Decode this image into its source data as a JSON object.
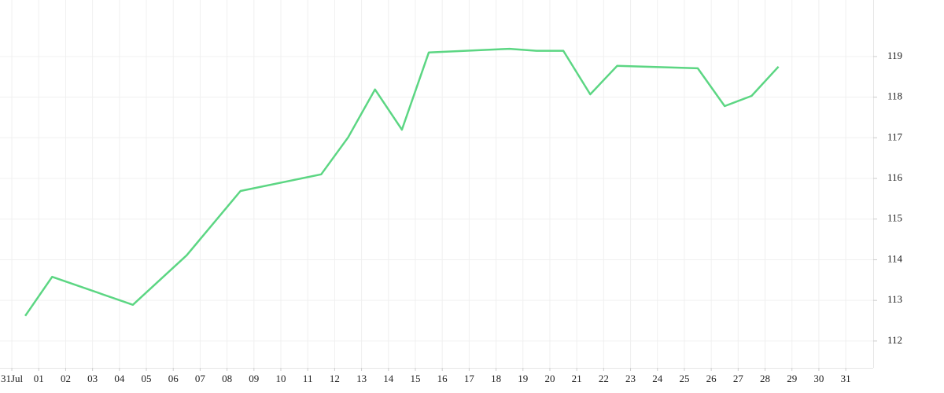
{
  "chart_data": {
    "type": "line",
    "x": [
      0.5,
      1.5,
      4.5,
      6.5,
      8.5,
      11.5,
      12.5,
      13.5,
      14.5,
      15.5,
      18.5,
      19.5,
      20.5,
      21.5,
      22.5,
      25.5,
      26.5,
      27.5,
      28.5
    ],
    "values": [
      112.62,
      113.58,
      112.89,
      114.11,
      115.69,
      116.1,
      117.01,
      118.19,
      117.2,
      119.1,
      119.19,
      119.14,
      119.14,
      118.07,
      118.77,
      118.71,
      117.78,
      118.03,
      118.75
    ],
    "color": "#5cd683",
    "xlim": [
      -0.44,
      32.02
    ],
    "xticks": [
      {
        "value": 0,
        "label": "31Jul"
      },
      {
        "value": 1,
        "label": "01"
      },
      {
        "value": 2,
        "label": "02"
      },
      {
        "value": 3,
        "label": "03"
      },
      {
        "value": 4,
        "label": "04"
      },
      {
        "value": 5,
        "label": "05"
      },
      {
        "value": 6,
        "label": "06"
      },
      {
        "value": 7,
        "label": "07"
      },
      {
        "value": 8,
        "label": "08"
      },
      {
        "value": 9,
        "label": "09"
      },
      {
        "value": 10,
        "label": "10"
      },
      {
        "value": 11,
        "label": "11"
      },
      {
        "value": 12,
        "label": "12"
      },
      {
        "value": 13,
        "label": "13"
      },
      {
        "value": 14,
        "label": "14"
      },
      {
        "value": 15,
        "label": "15"
      },
      {
        "value": 16,
        "label": "16"
      },
      {
        "value": 17,
        "label": "17"
      },
      {
        "value": 18,
        "label": "18"
      },
      {
        "value": 19,
        "label": "19"
      },
      {
        "value": 20,
        "label": "20"
      },
      {
        "value": 21,
        "label": "21"
      },
      {
        "value": 22,
        "label": "22"
      },
      {
        "value": 23,
        "label": "23"
      },
      {
        "value": 24,
        "label": "24"
      },
      {
        "value": 25,
        "label": "25"
      },
      {
        "value": 26,
        "label": "26"
      },
      {
        "value": 27,
        "label": "27"
      },
      {
        "value": 28,
        "label": "28"
      },
      {
        "value": 29,
        "label": "29"
      },
      {
        "value": 30,
        "label": "30"
      },
      {
        "value": 31,
        "label": "31"
      }
    ],
    "ylim": [
      111.34,
      120.39
    ],
    "yticks": [
      112,
      113,
      114,
      115,
      116,
      117,
      118,
      119
    ],
    "grid": true
  }
}
